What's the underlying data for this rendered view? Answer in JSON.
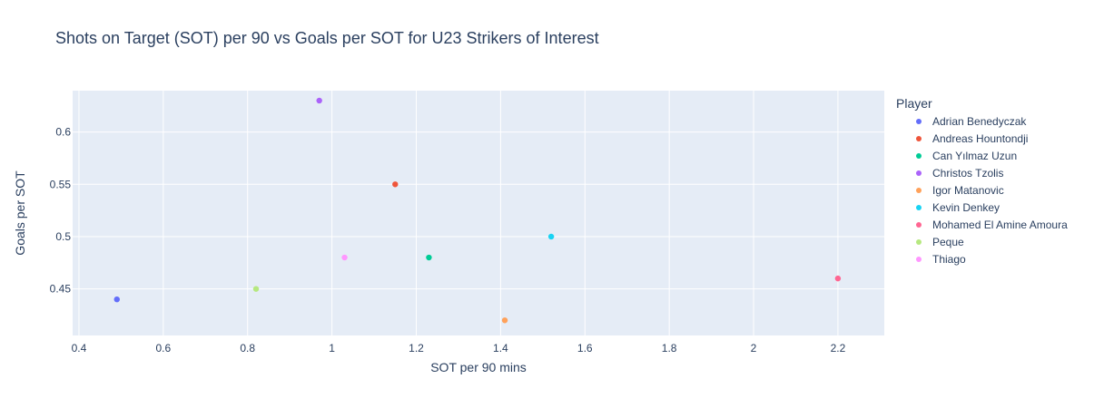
{
  "chart_data": {
    "type": "scatter",
    "title": "Shots on Target (SOT) per 90 vs Goals per SOT for U23 Strikers of Interest",
    "xlabel": "SOT per 90 mins",
    "ylabel": "Goals per SOT",
    "legend_title": "Player",
    "legend_position": "right",
    "grid": true,
    "xlim": [
      0.385,
      2.31
    ],
    "ylim": [
      0.4055,
      0.6395
    ],
    "x_ticks": [
      0.4,
      0.6,
      0.8,
      1,
      1.2,
      1.4,
      1.6,
      1.8,
      2,
      2.2
    ],
    "x_tick_labels": [
      "0.4",
      "0.6",
      "0.8",
      "1",
      "1.2",
      "1.4",
      "1.6",
      "1.8",
      "2",
      "2.2"
    ],
    "y_ticks": [
      0.45,
      0.5,
      0.55,
      0.6
    ],
    "y_tick_labels": [
      "0.45",
      "0.5",
      "0.55",
      "0.6"
    ],
    "series": [
      {
        "name": "Adrian Benedyczak",
        "color": "#636efa",
        "x": [
          0.49
        ],
        "y": [
          0.44
        ]
      },
      {
        "name": "Andreas Hountondji",
        "color": "#EF553B",
        "x": [
          1.15
        ],
        "y": [
          0.55
        ]
      },
      {
        "name": "Can Yılmaz Uzun",
        "color": "#00cc96",
        "x": [
          1.23
        ],
        "y": [
          0.48
        ]
      },
      {
        "name": "Christos Tzolis",
        "color": "#ab63fa",
        "x": [
          0.97
        ],
        "y": [
          0.63
        ]
      },
      {
        "name": "Igor Matanovic",
        "color": "#FFA15A",
        "x": [
          1.41
        ],
        "y": [
          0.42
        ]
      },
      {
        "name": "Kevin Denkey",
        "color": "#19d3f3",
        "x": [
          1.52
        ],
        "y": [
          0.5
        ]
      },
      {
        "name": "Mohamed El Amine Amoura",
        "color": "#FF6692",
        "x": [
          2.2
        ],
        "y": [
          0.46
        ]
      },
      {
        "name": "Peque",
        "color": "#B6E880",
        "x": [
          0.82
        ],
        "y": [
          0.45
        ]
      },
      {
        "name": "Thiago",
        "color": "#FF97FF",
        "x": [
          1.03
        ],
        "y": [
          0.48
        ]
      }
    ],
    "colors": {
      "plot_background": "#E5ECF6",
      "grid": "#ffffff",
      "text": "#2a3f5f"
    }
  }
}
